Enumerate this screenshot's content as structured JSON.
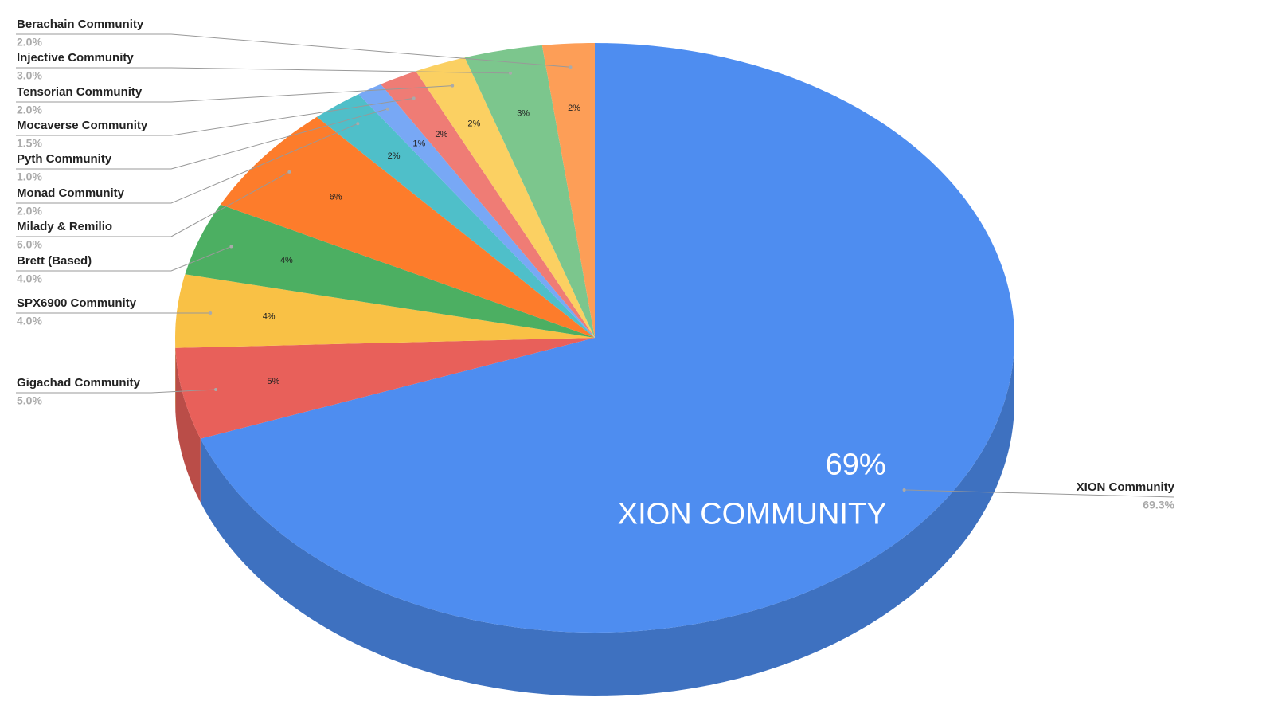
{
  "chart_data": {
    "type": "pie",
    "three_d": true,
    "categories": [
      "XION Community",
      "Gigachad Community",
      "SPX6900 Community",
      "Brett (Based)",
      "Milady & Remilio",
      "Monad Community",
      "Pyth Community",
      "Mocaverse Community",
      "Tensorian Community",
      "Injective Community",
      "Berachain Community"
    ],
    "values": [
      69.3,
      5.0,
      4.0,
      4.0,
      6.0,
      2.0,
      1.0,
      1.5,
      2.0,
      3.0,
      2.0
    ],
    "value_labels": [
      "69.3%",
      "5.0%",
      "4.0%",
      "4.0%",
      "6.0%",
      "2.0%",
      "1.0%",
      "1.5%",
      "2.0%",
      "3.0%",
      "2.0%"
    ],
    "slice_labels": [
      "69%",
      "5%",
      "4%",
      "4%",
      "6%",
      "2%",
      "1%",
      "2%",
      "2%",
      "3%",
      "2%"
    ],
    "colors": [
      "#4e8df0",
      "#e8605a",
      "#f9c145",
      "#4caf62",
      "#fd7c2b",
      "#4fbfc9",
      "#78a8f5",
      "#ef7c75",
      "#fbd062",
      "#7cc68d",
      "#fd9e57"
    ],
    "annotation": "XION COMMUNITY"
  }
}
